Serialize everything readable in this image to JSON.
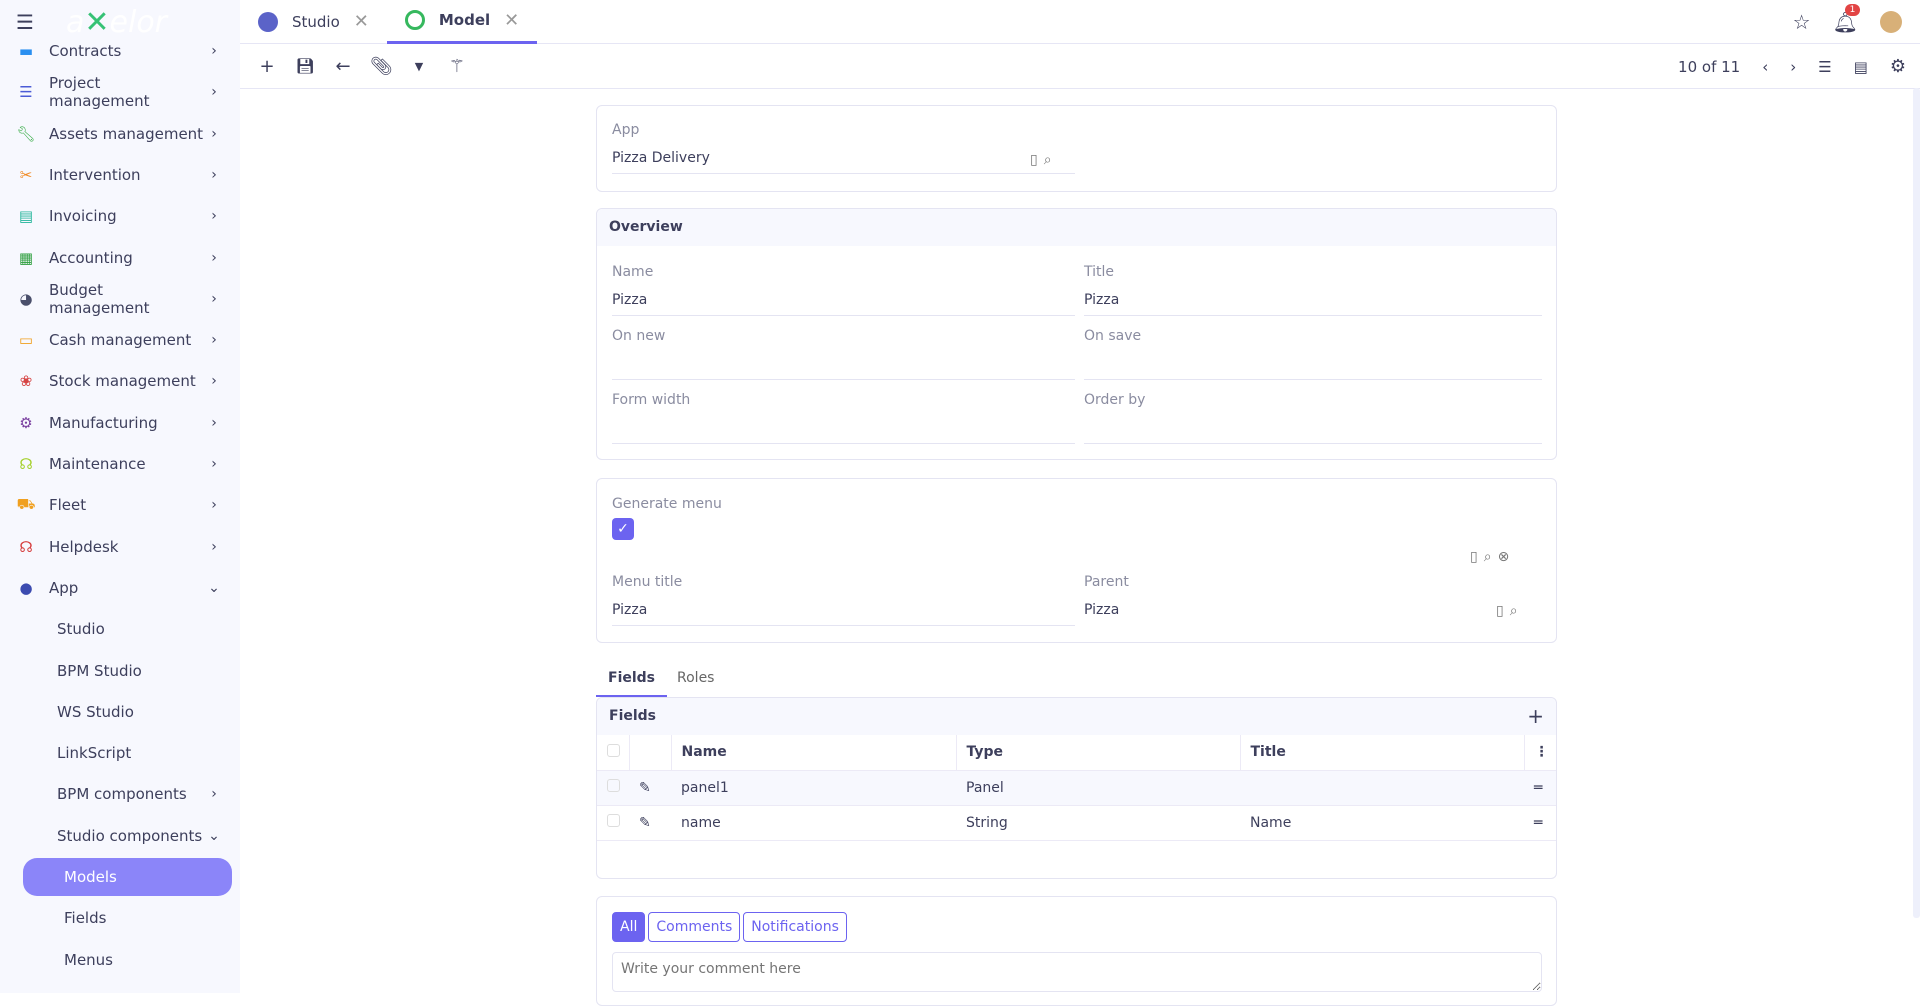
{
  "brand": "axelor",
  "sidebar": {
    "items": [
      {
        "label": "Contracts",
        "icon": "contract-icon",
        "color": "#2a8ff0"
      },
      {
        "label": "Project management",
        "icon": "list-icon",
        "color": "#4b5bd6"
      },
      {
        "label": "Assets management",
        "icon": "wrench-icon",
        "color": "#3cae4a"
      },
      {
        "label": "Intervention",
        "icon": "tools-icon",
        "color": "#f08a24"
      },
      {
        "label": "Invoicing",
        "icon": "invoice-icon",
        "color": "#24b59a"
      },
      {
        "label": "Accounting",
        "icon": "calculator-icon",
        "color": "#2e9e3e"
      },
      {
        "label": "Budget management",
        "icon": "pie-chart-icon",
        "color": "#4a4f6b"
      },
      {
        "label": "Cash management",
        "icon": "cash-icon",
        "color": "#f0a020"
      },
      {
        "label": "Stock management",
        "icon": "boxes-icon",
        "color": "#d64545"
      },
      {
        "label": "Manufacturing",
        "icon": "gear-icon",
        "color": "#7a3fa0"
      },
      {
        "label": "Maintenance",
        "icon": "maintenance-icon",
        "color": "#a6d12e"
      },
      {
        "label": "Fleet",
        "icon": "car-icon",
        "color": "#f0a020"
      },
      {
        "label": "Helpdesk",
        "icon": "headset-icon",
        "color": "#d63d3d"
      },
      {
        "label": "App",
        "icon": "app-icon",
        "color": "#3c4bb0"
      }
    ],
    "sub": [
      "Studio",
      "BPM Studio",
      "WS Studio",
      "LinkScript",
      "BPM components",
      "Studio components"
    ],
    "sub3": [
      "Models",
      "Fields",
      "Menus"
    ]
  },
  "tabs": [
    {
      "label": "Studio"
    },
    {
      "label": "Model"
    }
  ],
  "notifications_count": "1",
  "pager": "10 of 11",
  "app": {
    "label": "App",
    "value": "Pizza Delivery"
  },
  "overview": {
    "title": "Overview",
    "name_label": "Name",
    "name": "Pizza",
    "title_label": "Title",
    "title_value": "Pizza",
    "on_new_label": "On new",
    "on_new": "",
    "on_save_label": "On save",
    "on_save": "",
    "form_width_label": "Form width",
    "form_width": "",
    "order_by_label": "Order by",
    "order_by": ""
  },
  "menu": {
    "generate_label": "Generate menu",
    "generate": true,
    "menu_title_label": "Menu title",
    "menu_title": "Pizza",
    "parent_label": "Parent",
    "parent": "Pizza"
  },
  "subtabs": [
    "Fields",
    "Roles"
  ],
  "fields": {
    "title": "Fields",
    "columns": [
      "Name",
      "Type",
      "Title"
    ],
    "rows": [
      [
        "panel1",
        "Panel",
        ""
      ],
      [
        "name",
        "String",
        "Name"
      ]
    ]
  },
  "comments": {
    "filters": [
      "All",
      "Comments",
      "Notifications"
    ],
    "placeholder": "Write your comment here"
  },
  "accent": "#6c63f0"
}
